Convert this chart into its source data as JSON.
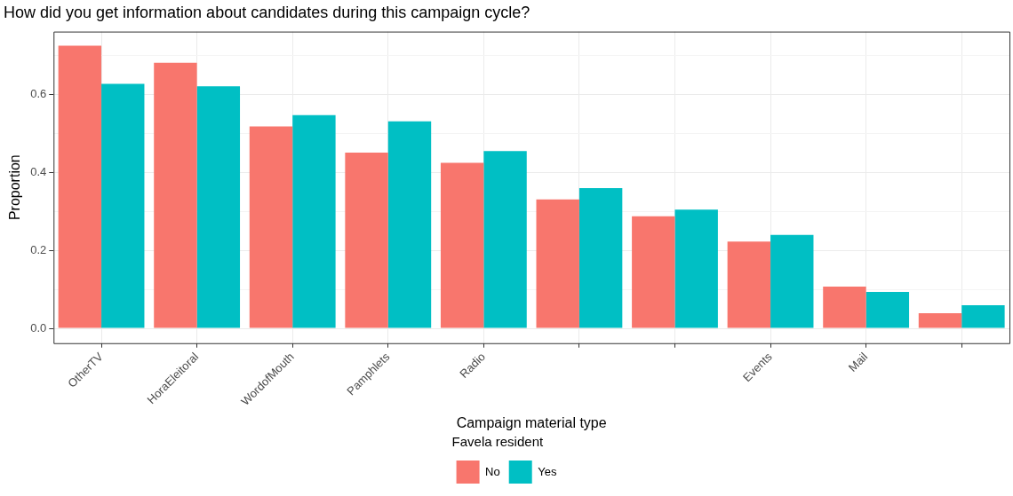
{
  "chart_data": {
    "type": "bar",
    "title": "How did you get information about candidates during this campaign cycle?",
    "xlabel": "Campaign material type",
    "ylabel": "Proportion",
    "legend_title": "Favela resident",
    "categories": [
      "OtherTV",
      "HoraEleitoral",
      "WordofMouth",
      "Pamphlets",
      "Radio",
      null,
      null,
      "Events",
      "Mail",
      null
    ],
    "series": [
      {
        "name": "No",
        "color": "#f8766d",
        "values": [
          0.724,
          0.68,
          0.517,
          0.45,
          0.424,
          0.33,
          0.287,
          0.222,
          0.107,
          0.039
        ]
      },
      {
        "name": "Yes",
        "color": "#00bfc4",
        "values": [
          0.626,
          0.62,
          0.546,
          0.53,
          0.454,
          0.359,
          0.304,
          0.239,
          0.093,
          0.059
        ]
      }
    ],
    "ylim": [
      -0.038,
      0.76
    ],
    "yticks": [
      {
        "value": 0,
        "label": "0.0"
      },
      {
        "value": 0.1,
        "label": null
      },
      {
        "value": 0.2,
        "label": "0.2"
      },
      {
        "value": 0.3,
        "label": null
      },
      {
        "value": 0.4,
        "label": "0.4"
      },
      {
        "value": 0.5,
        "label": null
      },
      {
        "value": 0.6,
        "label": "0.6"
      },
      {
        "value": 0.7,
        "label": null
      }
    ],
    "grid": true,
    "legend": "bottom"
  }
}
